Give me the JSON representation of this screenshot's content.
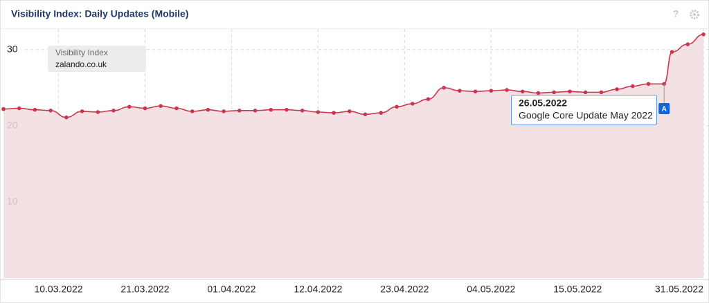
{
  "toolbar": {
    "help": "?"
  },
  "chart_data": {
    "type": "area",
    "title": "Visibility Index: Daily Updates (Mobile)",
    "legend_title": "Visibility Index",
    "x": [
      "03.03.2022",
      "05.03.2022",
      "07.03.2022",
      "09.03.2022",
      "11.03.2022",
      "13.03.2022",
      "15.03.2022",
      "17.03.2022",
      "19.03.2022",
      "21.03.2022",
      "23.03.2022",
      "25.03.2022",
      "27.03.2022",
      "29.03.2022",
      "31.03.2022",
      "02.04.2022",
      "04.04.2022",
      "06.04.2022",
      "08.04.2022",
      "10.04.2022",
      "12.04.2022",
      "14.04.2022",
      "16.04.2022",
      "18.04.2022",
      "20.04.2022",
      "22.04.2022",
      "24.04.2022",
      "26.04.2022",
      "28.04.2022",
      "30.04.2022",
      "02.05.2022",
      "04.05.2022",
      "06.05.2022",
      "08.05.2022",
      "10.05.2022",
      "12.05.2022",
      "14.05.2022",
      "16.05.2022",
      "18.05.2022",
      "20.05.2022",
      "22.05.2022",
      "24.05.2022",
      "26.05.2022",
      "27.05.2022",
      "29.05.2022",
      "31.05.2022"
    ],
    "series": [
      {
        "name": "zalando.co.uk",
        "color": "#c9374f",
        "fill": "#f2dcdf",
        "values": [
          22.2,
          22.3,
          22.1,
          22.0,
          21.1,
          21.9,
          21.8,
          22.0,
          22.5,
          22.3,
          22.6,
          22.3,
          21.9,
          22.1,
          21.9,
          22.0,
          22.0,
          22.1,
          22.1,
          22.0,
          21.8,
          21.7,
          21.9,
          21.5,
          21.7,
          22.5,
          22.9,
          23.5,
          25.0,
          24.6,
          24.5,
          24.6,
          24.7,
          24.5,
          24.3,
          24.4,
          24.5,
          24.4,
          24.4,
          24.8,
          25.2,
          25.5,
          25.5,
          29.7,
          30.7,
          32.0
        ]
      }
    ],
    "xlim": [
      "03.03.2022",
      "31.05.2022"
    ],
    "xticks": [
      "10.03.2022",
      "21.03.2022",
      "01.04.2022",
      "12.04.2022",
      "23.04.2022",
      "04.05.2022",
      "15.05.2022",
      "31.05.2022"
    ],
    "ylim": [
      0,
      32.7
    ],
    "yticks": [
      10,
      20,
      30
    ],
    "grid": true,
    "annotation": {
      "x": "26.05.2022",
      "date": "26.05.2022",
      "text": "Google Core Update May 2022",
      "marker": "A"
    }
  }
}
